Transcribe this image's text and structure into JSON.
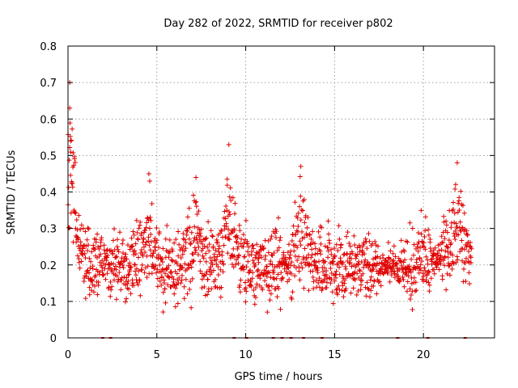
{
  "chart_data": {
    "type": "scatter",
    "title": "Day 282 of 2022, SRMTID for receiver p802",
    "xlabel": "GPS time / hours",
    "ylabel": "SRMTID / TECUs",
    "xlim": [
      0,
      24
    ],
    "ylim": [
      0,
      0.8
    ],
    "x_ticks": [
      0,
      5,
      10,
      15,
      20
    ],
    "x_tick_labels": [
      "0",
      "5",
      "10",
      "15",
      "20"
    ],
    "y_ticks": [
      0,
      0.1,
      0.2,
      0.3,
      0.4,
      0.5,
      0.6,
      0.7,
      0.8
    ],
    "y_tick_labels": [
      "0",
      "0.1",
      "0.2",
      "0.3",
      "0.4",
      "0.5",
      "0.6",
      "0.7",
      "0.8"
    ],
    "grid": true,
    "marker": "+",
    "color": "#e00000",
    "data_hours": [
      0.0,
      22.7
    ],
    "baseline_level_range": [
      0.1,
      0.3
    ],
    "peaks": [
      {
        "x": 0.1,
        "y": 0.7
      },
      {
        "x": 0.1,
        "y": 0.63
      },
      {
        "x": 0.15,
        "y": 0.54
      },
      {
        "x": 4.55,
        "y": 0.45
      },
      {
        "x": 7.2,
        "y": 0.44
      },
      {
        "x": 9.05,
        "y": 0.53
      },
      {
        "x": 13.1,
        "y": 0.47
      },
      {
        "x": 21.9,
        "y": 0.48
      }
    ],
    "low_activity_windows": [
      [
        1.9,
        2.2
      ],
      [
        12.1,
        12.5
      ],
      [
        17.5,
        19.0
      ],
      [
        20.5,
        21.0
      ]
    ],
    "data_gap_markers_x": [
      1.95,
      2.4,
      9.35,
      10.05,
      11.55,
      12.05,
      12.55,
      13.25,
      14.3,
      18.55,
      20.25,
      22.35
    ]
  }
}
